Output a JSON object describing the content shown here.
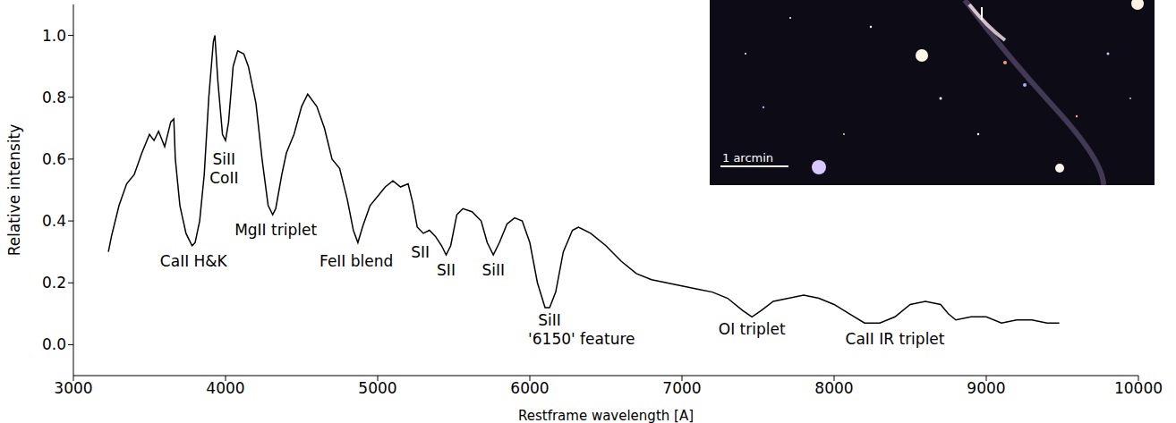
{
  "chart_data": {
    "type": "line",
    "x_label": "Restframe wavelength [A]",
    "y_label": "Relative intensity",
    "color": "#000000",
    "grid": false,
    "x": [
      3230,
      3250,
      3300,
      3350,
      3400,
      3450,
      3500,
      3530,
      3560,
      3600,
      3640,
      3660,
      3670,
      3700,
      3740,
      3780,
      3800,
      3830,
      3860,
      3890,
      3920,
      3930,
      3950,
      3980,
      4000,
      4020,
      4050,
      4080,
      4120,
      4150,
      4200,
      4240,
      4280,
      4310,
      4330,
      4370,
      4400,
      4450,
      4500,
      4540,
      4600,
      4650,
      4700,
      4750,
      4800,
      4840,
      4870,
      4900,
      4950,
      5000,
      5050,
      5100,
      5150,
      5200,
      5230,
      5260,
      5300,
      5340,
      5380,
      5420,
      5450,
      5480,
      5520,
      5560,
      5620,
      5680,
      5720,
      5760,
      5800,
      5850,
      5900,
      5950,
      6000,
      6050,
      6100,
      6130,
      6170,
      6220,
      6280,
      6320,
      6400,
      6500,
      6600,
      6700,
      6800,
      6900,
      7000,
      7100,
      7200,
      7300,
      7400,
      7460,
      7520,
      7600,
      7700,
      7800,
      7900,
      8000,
      8100,
      8200,
      8300,
      8400,
      8500,
      8600,
      8700,
      8750,
      8800,
      8900,
      9000,
      9100,
      9200,
      9300,
      9400,
      9480
    ],
    "values": [
      0.3,
      0.35,
      0.45,
      0.52,
      0.55,
      0.62,
      0.68,
      0.66,
      0.69,
      0.64,
      0.72,
      0.73,
      0.6,
      0.45,
      0.36,
      0.32,
      0.33,
      0.4,
      0.55,
      0.8,
      0.98,
      1.0,
      0.85,
      0.68,
      0.66,
      0.72,
      0.9,
      0.95,
      0.94,
      0.9,
      0.78,
      0.6,
      0.45,
      0.42,
      0.44,
      0.55,
      0.62,
      0.68,
      0.77,
      0.81,
      0.77,
      0.7,
      0.6,
      0.57,
      0.47,
      0.37,
      0.33,
      0.38,
      0.45,
      0.48,
      0.51,
      0.53,
      0.51,
      0.52,
      0.46,
      0.38,
      0.36,
      0.37,
      0.35,
      0.32,
      0.29,
      0.32,
      0.42,
      0.44,
      0.43,
      0.4,
      0.33,
      0.29,
      0.33,
      0.39,
      0.41,
      0.4,
      0.33,
      0.2,
      0.12,
      0.12,
      0.17,
      0.3,
      0.37,
      0.38,
      0.36,
      0.32,
      0.27,
      0.23,
      0.21,
      0.2,
      0.19,
      0.18,
      0.17,
      0.15,
      0.11,
      0.09,
      0.11,
      0.14,
      0.15,
      0.16,
      0.15,
      0.13,
      0.1,
      0.07,
      0.07,
      0.09,
      0.13,
      0.14,
      0.13,
      0.1,
      0.08,
      0.09,
      0.09,
      0.07,
      0.08,
      0.08,
      0.07,
      0.07
    ],
    "xlim": [
      3000,
      10000
    ],
    "xticks": [
      3000,
      4000,
      5000,
      6000,
      7000,
      8000,
      9000,
      10000
    ],
    "ylim": [
      -0.1,
      1.1
    ],
    "yticks": [
      {
        "value": 0,
        "label": "0.0"
      },
      {
        "value": 0.2,
        "label": "0.2"
      },
      {
        "value": 0.4,
        "label": "0.4"
      },
      {
        "value": 0.6,
        "label": "0.6"
      },
      {
        "value": 0.8,
        "label": "0.8"
      },
      {
        "value": 1,
        "label": "1.0"
      }
    ],
    "annotations": [
      {
        "text": "CaII H&K",
        "x": 3790,
        "y": 0.27
      },
      {
        "text": "SiII",
        "x": 3990,
        "y": 0.6
      },
      {
        "text": "CoII",
        "x": 3990,
        "y": 0.54
      },
      {
        "text": "MgII triplet",
        "x": 4330,
        "y": 0.37
      },
      {
        "text": "FeII blend",
        "x": 4860,
        "y": 0.27
      },
      {
        "text": "SII",
        "x": 5280,
        "y": 0.3
      },
      {
        "text": "SII",
        "x": 5450,
        "y": 0.24
      },
      {
        "text": "SiII",
        "x": 5760,
        "y": 0.24
      },
      {
        "text": "SiII",
        "x": 6130,
        "y": 0.08
      },
      {
        "text": "'6150' feature",
        "x": 6340,
        "y": 0.02
      },
      {
        "text": "OI triplet",
        "x": 7460,
        "y": 0.05
      },
      {
        "text": "CaII IR triplet",
        "x": 8400,
        "y": 0.02
      }
    ]
  },
  "inset": {
    "scale_label": "1 arcmin"
  }
}
